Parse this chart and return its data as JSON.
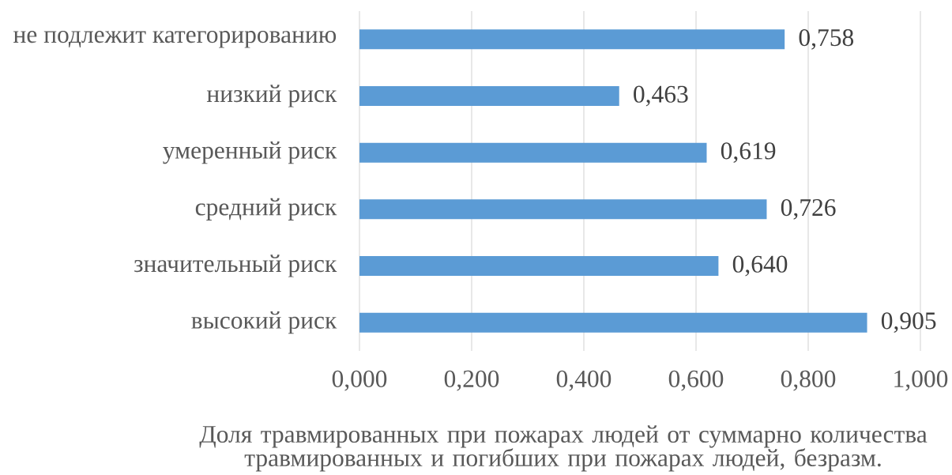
{
  "chart_data": {
    "type": "bar",
    "orientation": "horizontal",
    "categories": [
      "не подлежит категорированию",
      "низкий риск",
      "умеренный риск",
      "средний риск",
      "значительный риск",
      "высокий риск"
    ],
    "values": [
      0.758,
      0.463,
      0.619,
      0.726,
      0.64,
      0.905
    ],
    "value_labels": [
      "0,758",
      "0,463",
      "0,619",
      "0,726",
      "0,640",
      "0,905"
    ],
    "color": "#5b9bd5",
    "xlabel": "Доля травмированных при пожарах людей от суммарно количества травмированных и погибших при пожарах людей, безразм.",
    "xlim": [
      0,
      1
    ],
    "xticks": [
      {
        "value": 0,
        "label": "0,000"
      },
      {
        "value": 0.2,
        "label": "0,200"
      },
      {
        "value": 0.4,
        "label": "0,400"
      },
      {
        "value": 0.6,
        "label": "0,600"
      },
      {
        "value": 0.8,
        "label": "0,800"
      },
      {
        "value": 1,
        "label": "1,000"
      }
    ],
    "grid": "x"
  }
}
